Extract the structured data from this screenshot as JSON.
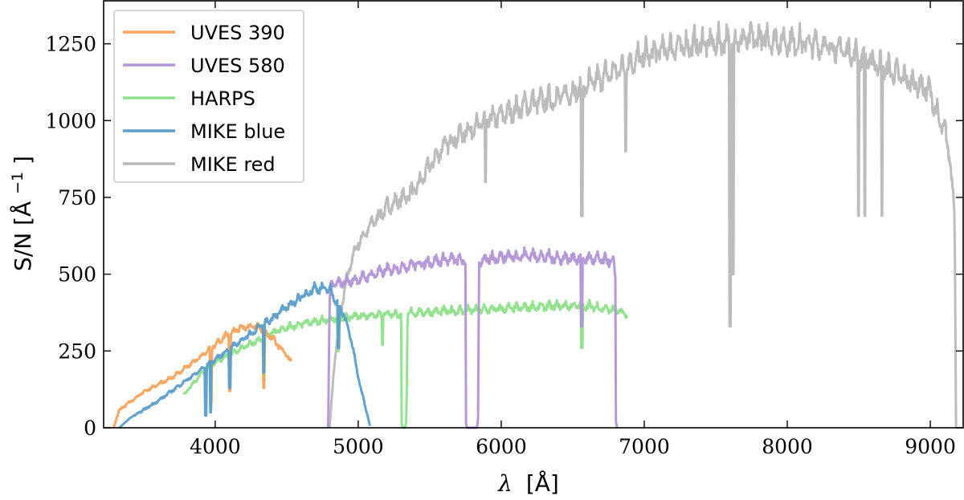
{
  "chart_data": {
    "type": "line",
    "xlabel": "λ [Å]",
    "xlabel_symbol": "λ",
    "xlabel_unit": "[Å]",
    "ylabel": "S/N [Å⁻¹]",
    "ylabel_main": "S/N [Å",
    "ylabel_exp": "−1",
    "ylabel_close": "]",
    "xlim": [
      3220,
      9230
    ],
    "ylim": [
      0,
      1390
    ],
    "xticks": [
      4000,
      5000,
      6000,
      7000,
      8000,
      9000
    ],
    "yticks": [
      0,
      250,
      500,
      750,
      1000,
      1250
    ],
    "legend_position": "upper-left",
    "series": [
      {
        "name": "UVES 390",
        "color": "#f7a35c",
        "x": [
          3290,
          3330,
          3500,
          3700,
          3900,
          4000,
          4100,
          4200,
          4300,
          4400,
          4500,
          4530,
          4530
        ],
        "y": [
          0,
          60,
          120,
          170,
          240,
          280,
          320,
          340,
          340,
          300,
          245,
          220,
          170
        ],
        "dips": [
          [
            3970,
            80
          ],
          [
            4102,
            120
          ],
          [
            4340,
            130
          ]
        ]
      },
      {
        "name": "UVES 580",
        "color": "#b295d6",
        "x": [
          4790,
          4800,
          4810,
          5000,
          5200,
          5400,
          5600,
          5700,
          5750,
          5752,
          5760,
          5830,
          5838,
          5845,
          6000,
          6200,
          6400,
          6600,
          6780,
          6800,
          6802,
          6810
        ],
        "y": [
          0,
          420,
          480,
          500,
          530,
          550,
          565,
          565,
          560,
          20,
          0,
          0,
          30,
          560,
          575,
          580,
          570,
          570,
          560,
          500,
          20,
          0
        ],
        "dips": [
          [
            6563,
            330
          ]
        ]
      },
      {
        "name": "HARPS",
        "color": "#8ee08a",
        "x": [
          3780,
          3900,
          4000,
          4200,
          4400,
          4600,
          4800,
          5000,
          5200,
          5300,
          5302,
          5310,
          5330,
          5338,
          5345,
          5500,
          5800,
          6000,
          6200,
          6400,
          6600,
          6800,
          6880,
          6880
        ],
        "y": [
          110,
          180,
          220,
          270,
          320,
          350,
          365,
          375,
          385,
          380,
          20,
          0,
          0,
          30,
          385,
          390,
          395,
          400,
          405,
          410,
          410,
          395,
          380,
          330
        ],
        "dips": [
          [
            3970,
            60
          ],
          [
            4340,
            150
          ],
          [
            4861,
            250
          ],
          [
            5170,
            270
          ],
          [
            6563,
            260
          ]
        ]
      },
      {
        "name": "MIKE blue",
        "color": "#5b9dc9",
        "x": [
          3330,
          3400,
          3600,
          3800,
          4000,
          4200,
          4400,
          4600,
          4700,
          4800,
          4900,
          4950,
          5000,
          5050,
          5080,
          5085
        ],
        "y": [
          0,
          30,
          90,
          160,
          230,
          300,
          370,
          440,
          470,
          465,
          380,
          300,
          170,
          70,
          10,
          0
        ],
        "dips": [
          [
            3933,
            40
          ],
          [
            3968,
            50
          ],
          [
            4102,
            130
          ],
          [
            4340,
            180
          ],
          [
            4861,
            260
          ]
        ]
      },
      {
        "name": "MIKE red",
        "color": "#b8b8b8",
        "x": [
          4800,
          4830,
          4870,
          4900,
          4950,
          5000,
          5100,
          5200,
          5400,
          5500,
          5600,
          5800,
          6000,
          6200,
          6400,
          6600,
          6800,
          7000,
          7200,
          7400,
          7600,
          7800,
          8000,
          8200,
          8400,
          8600,
          8800,
          9000,
          9060,
          9100,
          9140,
          9170,
          9180
        ],
        "y": [
          0,
          200,
          360,
          450,
          560,
          620,
          690,
          740,
          800,
          880,
          950,
          1010,
          1050,
          1090,
          1110,
          1150,
          1200,
          1250,
          1280,
          1290,
          1300,
          1310,
          1300,
          1290,
          1270,
          1230,
          1180,
          1130,
          1030,
          1000,
          900,
          720,
          0
        ],
        "dips": [
          [
            5890,
            800
          ],
          [
            6563,
            690
          ],
          [
            6870,
            900
          ],
          [
            7600,
            330
          ],
          [
            7620,
            500
          ],
          [
            8498,
            690
          ],
          [
            8542,
            690
          ],
          [
            8662,
            690
          ]
        ]
      }
    ]
  }
}
